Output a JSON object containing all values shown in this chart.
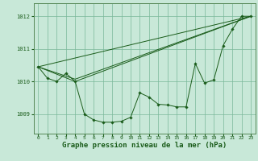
{
  "background_color": "#c8e8d8",
  "grid_color": "#7ab89a",
  "line_color": "#1a5c1a",
  "marker_color": "#1a5c1a",
  "title": "Graphe pression niveau de la mer (hPa)",
  "title_fontsize": 6.5,
  "xlim": [
    -0.5,
    23.5
  ],
  "ylim": [
    1008.4,
    1012.4
  ],
  "yticks": [
    1009,
    1010,
    1011,
    1012
  ],
  "xticks": [
    0,
    1,
    2,
    3,
    4,
    5,
    6,
    7,
    8,
    9,
    10,
    11,
    12,
    13,
    14,
    15,
    16,
    17,
    18,
    19,
    20,
    21,
    22,
    23
  ],
  "series_main": {
    "x": [
      0,
      1,
      2,
      3,
      4,
      5,
      6,
      7,
      8,
      9,
      10,
      11,
      12,
      13,
      14,
      15,
      16,
      17,
      18,
      19,
      20,
      21,
      22,
      23
    ],
    "y": [
      1010.45,
      1010.1,
      1010.0,
      1010.25,
      1010.0,
      1009.0,
      1008.82,
      1008.75,
      1008.75,
      1008.78,
      1008.9,
      1009.65,
      1009.52,
      1009.3,
      1009.28,
      1009.22,
      1009.22,
      1010.55,
      1009.95,
      1010.05,
      1011.1,
      1011.6,
      1012.0,
      1012.0
    ]
  },
  "line_top": {
    "x": [
      0,
      23
    ],
    "y": [
      1010.45,
      1012.0
    ]
  },
  "line_mid": {
    "x": [
      0,
      4,
      23
    ],
    "y": [
      1010.45,
      1010.07,
      1012.0
    ]
  },
  "line_bot": {
    "x": [
      0,
      4,
      23
    ],
    "y": [
      1010.45,
      1010.0,
      1012.0
    ]
  }
}
